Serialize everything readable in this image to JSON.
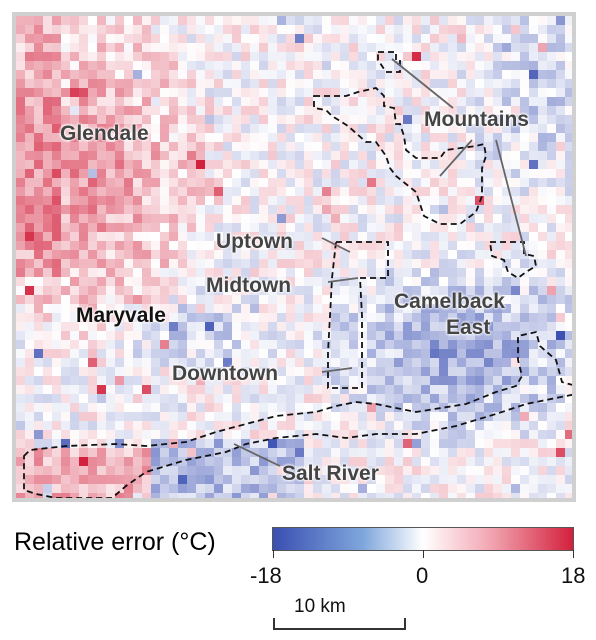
{
  "map": {
    "places": {
      "glendale": "Glendale",
      "maryvale": "Maryvale",
      "mountains": "Mountains",
      "uptown": "Uptown",
      "midtown": "Midtown",
      "downtown": "Downtown",
      "camelback_east_line1": "Camelback",
      "camelback_east_line2": "East",
      "salt_river": "Salt River"
    },
    "colors": {
      "negative": "#3a4fb2",
      "neutral": "#ffffff",
      "positive": "#d3203c"
    }
  },
  "legend": {
    "title": "Relative error (°C)",
    "min_label": "-18",
    "mid_label": "0",
    "max_label": "18",
    "min": -18,
    "max": 18
  },
  "scale": {
    "label": "10 km"
  }
}
